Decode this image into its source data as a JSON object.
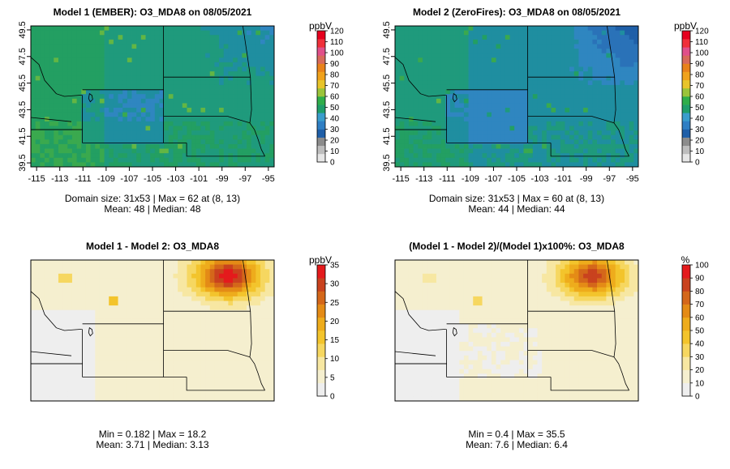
{
  "colorbar_colors": [
    "#e6e6e6",
    "#bdbdbd",
    "#8c8c8c",
    "#1f5fa8",
    "#2f7fc4",
    "#3a9dcc",
    "#1f9e6a",
    "#2fae4a",
    "#9bc43a",
    "#e8c42a",
    "#f0a21c",
    "#e8821a",
    "#d86a5a",
    "#e0508a",
    "#f0303a",
    "#e6001e"
  ],
  "diff_colors": [
    "#eeeeee",
    "#f5efcf",
    "#f7e7a2",
    "#f6d760",
    "#f3c42c",
    "#eeac1c",
    "#e48b16",
    "#d4671a",
    "#c9421e",
    "#e41a1c"
  ],
  "chart_data": [
    {
      "type": "heatmap",
      "title": "Model 1 (EMBER): O3_MDA8 on 08/05/2021",
      "x_ticks": [
        "-115",
        "-113",
        "-111",
        "-109",
        "-107",
        "-105",
        "-103",
        "-101",
        "-99",
        "-97",
        "-95"
      ],
      "y_ticks": [
        "39.5",
        "41.5",
        "43.5",
        "45.5",
        "47.5",
        "49.5"
      ],
      "colorbar": {
        "unit": "ppbV",
        "range": [
          0,
          120
        ],
        "labels": [
          "0",
          "10",
          "20",
          "30",
          "40",
          "50",
          "60",
          "70",
          "80",
          "90",
          "100",
          "110",
          "120"
        ]
      },
      "stats": [
        "Domain size: 31x53 | Max = 62 at (8, 13)",
        "Mean: 48 |  Median: 48"
      ],
      "dims": {
        "nx": 53,
        "ny": 31
      },
      "max": 62,
      "mean": 48,
      "median": 48
    },
    {
      "type": "heatmap",
      "title": "Model 2 (ZeroFires): O3_MDA8 on 08/05/2021",
      "x_ticks": [
        "-115",
        "-113",
        "-111",
        "-109",
        "-107",
        "-105",
        "-103",
        "-101",
        "-99",
        "-97",
        "-95"
      ],
      "y_ticks": [
        "39.5",
        "41.5",
        "43.5",
        "45.5",
        "47.5",
        "49.5"
      ],
      "colorbar": {
        "unit": "ppbV",
        "range": [
          0,
          120
        ],
        "labels": [
          "0",
          "10",
          "20",
          "30",
          "40",
          "50",
          "60",
          "70",
          "80",
          "90",
          "100",
          "110",
          "120"
        ]
      },
      "stats": [
        "Domain size: 31x53 | Max = 60 at (8, 13)",
        "Mean: 44 |  Median: 44"
      ],
      "dims": {
        "nx": 53,
        "ny": 31
      },
      "max": 60,
      "mean": 44,
      "median": 44
    },
    {
      "type": "heatmap",
      "title": "Model 1 - Model 2: O3_MDA8",
      "colorbar": {
        "unit": "ppbV",
        "range": [
          0,
          35
        ],
        "labels": [
          "0",
          "5",
          "10",
          "15",
          "20",
          "25",
          "30",
          "35"
        ]
      },
      "stats": [
        "Min = 0.182 | Max = 18.2",
        "Mean: 3.71 |  Median: 3.13"
      ],
      "min": 0.182,
      "max": 18.2,
      "mean": 3.71,
      "median": 3.13
    },
    {
      "type": "heatmap",
      "title": "(Model 1 - Model 2)/(Model 1)x100%: O3_MDA8",
      "colorbar": {
        "unit": "%",
        "range": [
          0,
          100
        ],
        "labels": [
          "0",
          "10",
          "20",
          "30",
          "40",
          "50",
          "60",
          "70",
          "80",
          "90",
          "100"
        ]
      },
      "stats": [
        "Min = 0.4 | Max = 35.5",
        "Mean: 7.6 |  Median: 6.4"
      ],
      "min": 0.4,
      "max": 35.5,
      "mean": 7.6,
      "median": 6.4
    }
  ]
}
